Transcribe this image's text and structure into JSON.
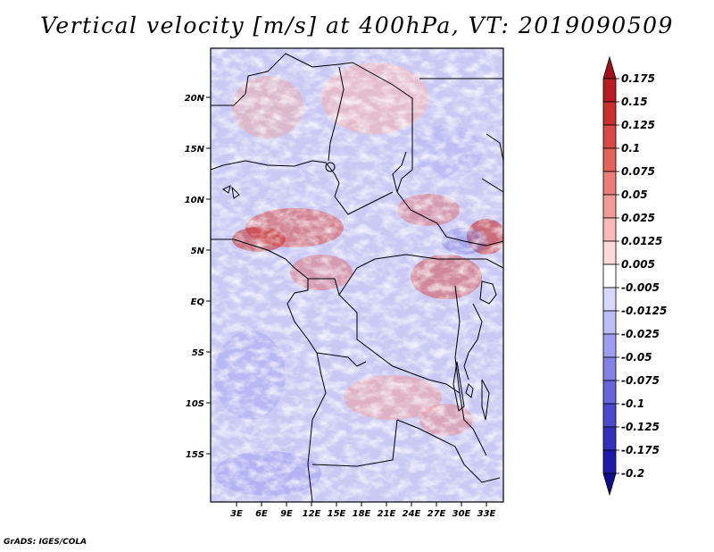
{
  "title": "Vertical velocity [m/s] at 400hPa, VT: 2019090509",
  "footer": "GrADS: IGES/COLA",
  "map": {
    "lat_labels": [
      "20N",
      "15N",
      "10N",
      "5N",
      "EQ",
      "5S",
      "10S",
      "15S"
    ],
    "lon_labels": [
      "3E",
      "6E",
      "9E",
      "12E",
      "15E",
      "18E",
      "21E",
      "24E",
      "27E",
      "30E",
      "33E"
    ],
    "field_description": "Vertical velocity field at 400hPa over Central Africa"
  },
  "colorbar": {
    "levels": [
      "0.175",
      "0.15",
      "0.125",
      "0.1",
      "0.075",
      "0.05",
      "0.025",
      "0.0125",
      "0.005",
      "-0.005",
      "-0.0125",
      "-0.025",
      "-0.05",
      "-0.075",
      "-0.1",
      "-0.125",
      "-0.175",
      "-0.2"
    ],
    "colors": [
      "#a50f15",
      "#b81d22",
      "#c9302c",
      "#d84a43",
      "#e3625b",
      "#ec7d76",
      "#f39a94",
      "#f8bab5",
      "#fcdad8",
      "#ffffff",
      "#d8d8fc",
      "#bcbcf6",
      "#9e9ef0",
      "#8282e6",
      "#6666dc",
      "#4a4acf",
      "#3030bd",
      "#1c1ca8",
      "#0e0e8c"
    ]
  }
}
